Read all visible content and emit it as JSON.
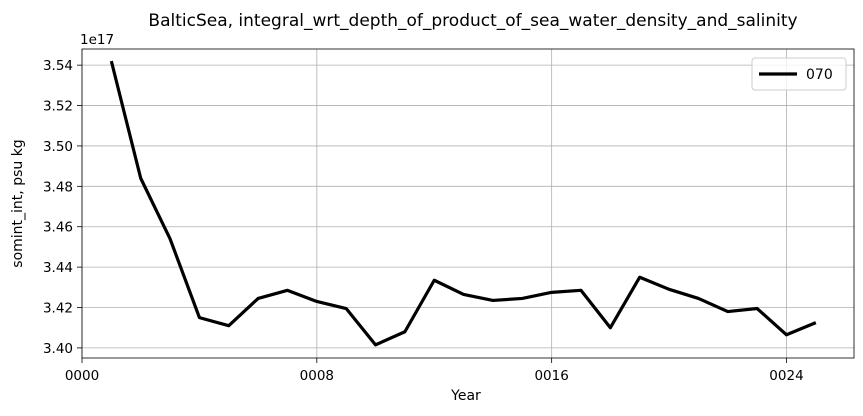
{
  "chart_data": {
    "type": "line",
    "title": "BalticSea, integral_wrt_depth_of_product_of_sea_water_density_and_salinity",
    "xlabel": "Year",
    "ylabel": "somint_int, psu kg",
    "y_offset_label": "1e17",
    "y_scale": 1e+17,
    "xlim": [
      0,
      26.3
    ],
    "ylim": [
      3.395,
      3.548
    ],
    "grid": true,
    "legend_position": "top-right",
    "x_ticks": [
      {
        "value": 0,
        "label": "0000"
      },
      {
        "value": 8,
        "label": "0008"
      },
      {
        "value": 16,
        "label": "0016"
      },
      {
        "value": 24,
        "label": "0024"
      }
    ],
    "y_ticks": [
      {
        "value": 3.4,
        "label": "3.40"
      },
      {
        "value": 3.42,
        "label": "3.42"
      },
      {
        "value": 3.44,
        "label": "3.44"
      },
      {
        "value": 3.46,
        "label": "3.46"
      },
      {
        "value": 3.48,
        "label": "3.48"
      },
      {
        "value": 3.5,
        "label": "3.50"
      },
      {
        "value": 3.52,
        "label": "3.52"
      },
      {
        "value": 3.54,
        "label": "3.54"
      }
    ],
    "series": [
      {
        "name": "070",
        "color": "#000000",
        "x": [
          1,
          2,
          3,
          4,
          5,
          6,
          7,
          8,
          9,
          10,
          11,
          12,
          13,
          14,
          15,
          16,
          17,
          18,
          19,
          20,
          21,
          22,
          23,
          24,
          25
        ],
        "y": [
          3.542,
          3.484,
          3.454,
          3.415,
          3.411,
          3.4245,
          3.4285,
          3.423,
          3.4195,
          3.4015,
          3.408,
          3.4335,
          3.4265,
          3.4235,
          3.4245,
          3.4275,
          3.4285,
          3.41,
          3.435,
          3.429,
          3.4245,
          3.418,
          3.4195,
          3.4065,
          3.4125
        ]
      }
    ]
  }
}
